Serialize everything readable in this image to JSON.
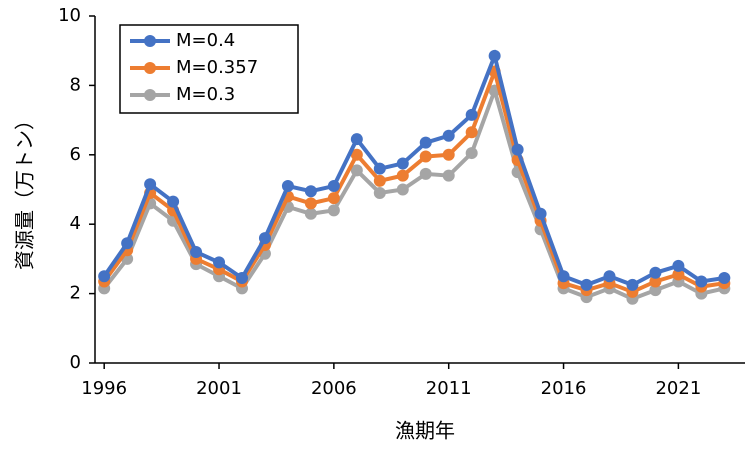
{
  "chart_data": {
    "type": "line",
    "x_label": "漁期年",
    "y_label": "資源量（万トン）",
    "x": [
      1996,
      1997,
      1998,
      1999,
      2000,
      2001,
      2002,
      2003,
      2004,
      2005,
      2006,
      2007,
      2008,
      2009,
      2010,
      2011,
      2012,
      2013,
      2014,
      2015,
      2016,
      2017,
      2018,
      2019,
      2020,
      2021,
      2022,
      2023
    ],
    "series": [
      {
        "name": "M=0.4",
        "color": "#4472c4",
        "values": [
          2.5,
          3.45,
          5.15,
          4.65,
          3.2,
          2.9,
          2.45,
          3.6,
          5.1,
          4.95,
          5.1,
          6.45,
          5.6,
          5.75,
          6.35,
          6.55,
          7.15,
          8.85,
          6.15,
          4.3,
          2.5,
          2.25,
          2.5,
          2.25,
          2.6,
          2.8,
          2.35,
          2.45
        ]
      },
      {
        "name": "M=0.357",
        "color": "#ed7d31",
        "values": [
          2.35,
          3.25,
          4.9,
          4.4,
          3.0,
          2.7,
          2.35,
          3.4,
          4.8,
          4.6,
          4.75,
          6.0,
          5.25,
          5.4,
          5.95,
          6.0,
          6.65,
          8.4,
          5.85,
          4.1,
          2.3,
          2.1,
          2.3,
          2.05,
          2.35,
          2.55,
          2.2,
          2.3
        ]
      },
      {
        "name": "M=0.3",
        "color": "#a5a5a5",
        "values": [
          2.15,
          3.0,
          4.6,
          4.1,
          2.85,
          2.5,
          2.15,
          3.15,
          4.5,
          4.3,
          4.4,
          5.55,
          4.9,
          5.0,
          5.45,
          5.4,
          6.05,
          7.85,
          5.5,
          3.85,
          2.15,
          1.9,
          2.15,
          1.85,
          2.1,
          2.35,
          2.0,
          2.15
        ]
      }
    ],
    "xlim": [
      1995.6,
      2023.9
    ],
    "xticks": [
      1996,
      2001,
      2006,
      2011,
      2016,
      2021
    ],
    "ylim": [
      0,
      10
    ],
    "yticks": [
      0,
      2,
      4,
      6,
      8,
      10
    ],
    "grid": false,
    "legend": "upper left"
  }
}
